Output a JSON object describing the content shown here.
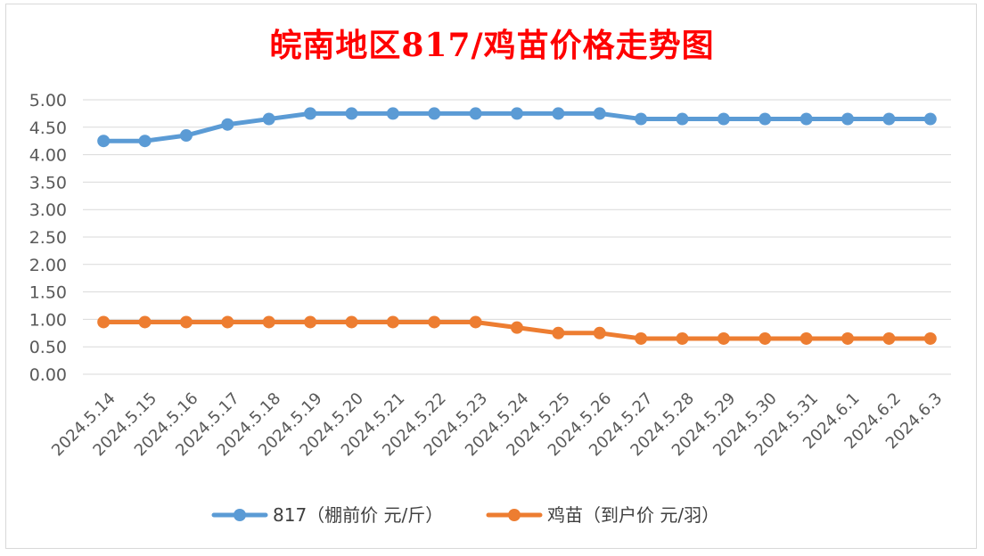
{
  "chart_data": {
    "type": "line",
    "title": "皖南地区817/鸡苗价格走势图",
    "categories": [
      "2024.5.14",
      "2024.5.15",
      "2024.5.16",
      "2024.5.17",
      "2024.5.18",
      "2024.5.19",
      "2024.5.20",
      "2024.5.21",
      "2024.5.22",
      "2024.5.23",
      "2024.5.24",
      "2024.5.25",
      "2024.5.26",
      "2024.5.27",
      "2024.5.28",
      "2024.5.29",
      "2024.5.30",
      "2024.5.31",
      "2024.6.1",
      "2024.6.2",
      "2024.6.3"
    ],
    "series": [
      {
        "name": "817（棚前价 元/斤）",
        "color": "#5b9bd5",
        "values": [
          4.25,
          4.25,
          4.35,
          4.55,
          4.65,
          4.75,
          4.75,
          4.75,
          4.75,
          4.75,
          4.75,
          4.75,
          4.75,
          4.65,
          4.65,
          4.65,
          4.65,
          4.65,
          4.65,
          4.65,
          4.65
        ]
      },
      {
        "name": "鸡苗（到户价 元/羽）",
        "color": "#ed7d31",
        "values": [
          0.95,
          0.95,
          0.95,
          0.95,
          0.95,
          0.95,
          0.95,
          0.95,
          0.95,
          0.95,
          0.85,
          0.75,
          0.75,
          0.65,
          0.65,
          0.65,
          0.65,
          0.65,
          0.65,
          0.65,
          0.65
        ]
      }
    ],
    "ylim": [
      0,
      5
    ],
    "yticks": [
      "0.00",
      "0.50",
      "1.00",
      "1.50",
      "2.00",
      "2.50",
      "3.00",
      "3.50",
      "4.00",
      "4.50",
      "5.00"
    ],
    "grid": true,
    "legend_position": "bottom"
  }
}
